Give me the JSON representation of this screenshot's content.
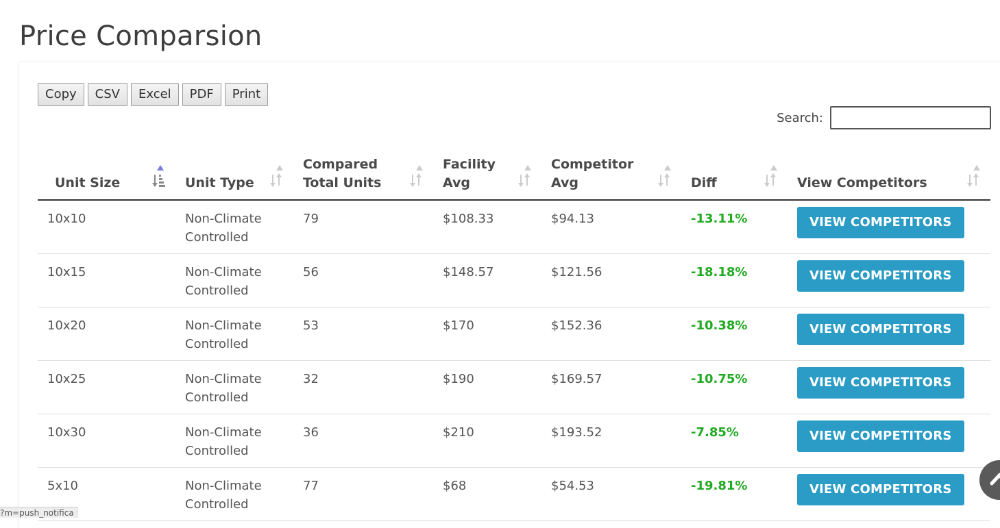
{
  "page": {
    "title": "Price Comparsion"
  },
  "toolbar": {
    "buttons": [
      "Copy",
      "CSV",
      "Excel",
      "PDF",
      "Print"
    ]
  },
  "search": {
    "label": "Search:",
    "value": "",
    "placeholder": ""
  },
  "table": {
    "columns": [
      {
        "label": "Unit Size",
        "sort": "asc"
      },
      {
        "label": "Unit Type",
        "sort": "none"
      },
      {
        "label": "Compared Total Units",
        "sort": "none"
      },
      {
        "label": "Facility Avg",
        "sort": "none"
      },
      {
        "label": "Competitor Avg",
        "sort": "none"
      },
      {
        "label": "Diff",
        "sort": "none"
      },
      {
        "label": "View Competitors",
        "sort": "none"
      }
    ],
    "rows": [
      {
        "size": "10x10",
        "type": "Non-Climate Controlled",
        "units": "79",
        "facility_avg": "$108.33",
        "competitor_avg": "$94.13",
        "diff": "-13.11%",
        "action": "VIEW COMPETITORS"
      },
      {
        "size": "10x15",
        "type": "Non-Climate Controlled",
        "units": "56",
        "facility_avg": "$148.57",
        "competitor_avg": "$121.56",
        "diff": "-18.18%",
        "action": "VIEW COMPETITORS"
      },
      {
        "size": "10x20",
        "type": "Non-Climate Controlled",
        "units": "53",
        "facility_avg": "$170",
        "competitor_avg": "$152.36",
        "diff": "-10.38%",
        "action": "VIEW COMPETITORS"
      },
      {
        "size": "10x25",
        "type": "Non-Climate Controlled",
        "units": "32",
        "facility_avg": "$190",
        "competitor_avg": "$169.57",
        "diff": "-10.75%",
        "action": "VIEW COMPETITORS"
      },
      {
        "size": "10x30",
        "type": "Non-Climate Controlled",
        "units": "36",
        "facility_avg": "$210",
        "competitor_avg": "$193.52",
        "diff": "-7.85%",
        "action": "VIEW COMPETITORS"
      },
      {
        "size": "5x10",
        "type": "Non-Climate Controlled",
        "units": "77",
        "facility_avg": "$68",
        "competitor_avg": "$54.53",
        "diff": "-19.81%",
        "action": "VIEW COMPETITORS"
      }
    ]
  },
  "status_bar": {
    "url_fragment": "?m=push_notifica"
  },
  "colors": {
    "action_button": "#2b9cc6",
    "diff_text": "#22aa22",
    "sort_active": "#7b7be0",
    "sort_inactive": "#cccccc"
  },
  "icons": {
    "sort_active": "sort-ascending-icon",
    "sort_inactive": "sort-both-icon",
    "scroll_top": "chevron-up-icon"
  }
}
